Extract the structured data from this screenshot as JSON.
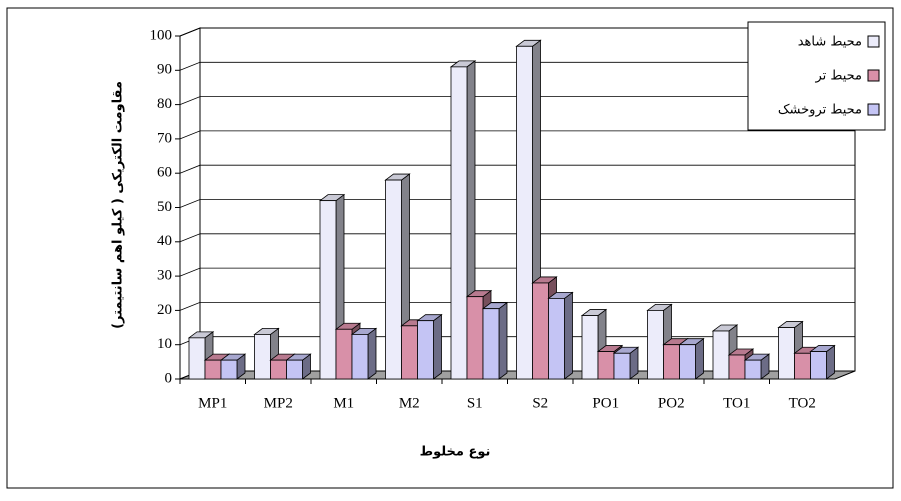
{
  "chart_data": {
    "type": "bar3d",
    "y_label": "مقاومت الکتریکی ( کیلو اهم سانتیمتر)",
    "x_label": "نوع مخلوط",
    "categories": [
      "MP1",
      "MP2",
      "M1",
      "M2",
      "S1",
      "S2",
      "PO1",
      "PO2",
      "TO1",
      "TO2"
    ],
    "series": [
      {
        "name": "محیط شاهد",
        "color": "#ececfa",
        "values": [
          12,
          13,
          52,
          58,
          91,
          97,
          18.5,
          20,
          14,
          15
        ]
      },
      {
        "name": "محیط تر",
        "color": "#d890a8",
        "values": [
          5.5,
          5.5,
          14.5,
          15.5,
          24,
          28,
          8,
          10,
          7,
          7.5
        ]
      },
      {
        "name": "محیط تروخشک",
        "color": "#c4c4f4",
        "values": [
          5.5,
          5.5,
          13,
          17,
          20.5,
          23.5,
          7.5,
          10,
          5.5,
          8
        ]
      }
    ],
    "ylim": [
      0,
      100
    ],
    "yticks": [
      0,
      10,
      20,
      30,
      40,
      50,
      60,
      70,
      80,
      90,
      100
    ],
    "grid": true,
    "legend": "upper right"
  }
}
